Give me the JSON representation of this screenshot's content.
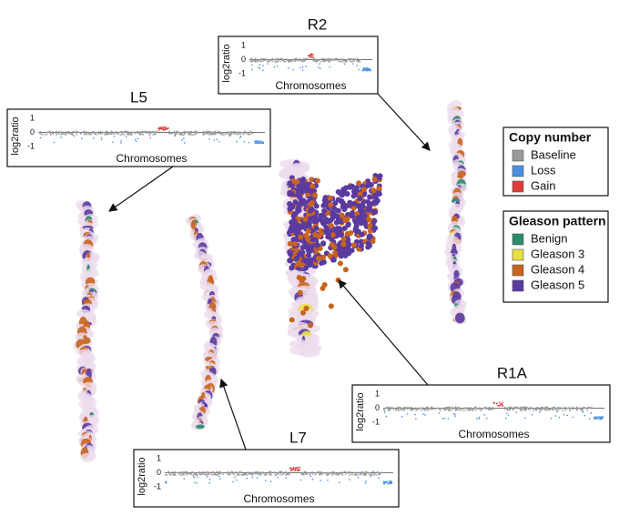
{
  "panels": [
    {
      "title": "R2",
      "y_label": "log2ratio",
      "x_label": "Chromosomes",
      "ticks": [
        "1",
        "0",
        "-1"
      ]
    },
    {
      "title": "L5",
      "y_label": "log2ratio",
      "x_label": "Chromosomes",
      "ticks": [
        "1",
        "0",
        "-1"
      ]
    },
    {
      "title": "R1A",
      "y_label": "log2ratio",
      "x_label": "Chromosomes",
      "ticks": [
        "1",
        "0",
        "-1"
      ]
    },
    {
      "title": "L7",
      "y_label": "log2ratio",
      "x_label": "Chromosomes",
      "ticks": [
        "1",
        "0",
        "-1"
      ]
    }
  ],
  "legends": [
    {
      "title": "Copy number",
      "items": [
        "Baseline",
        "Loss",
        "Gain"
      ]
    },
    {
      "title": "Gleason pattern",
      "items": [
        "Benign",
        "Gleason 3",
        "Gleason 4",
        "Gleason 5"
      ]
    }
  ]
}
